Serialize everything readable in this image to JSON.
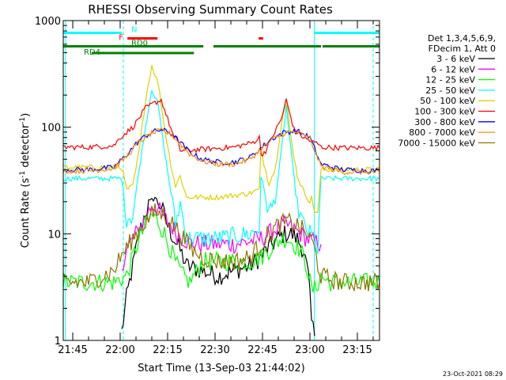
{
  "chart_data": {
    "type": "line",
    "title": "RHESSI Observing Summary Count Rates",
    "xlabel": "Start Time (13-Sep-03 21:44:02)",
    "ylabel_main": "Count Rate (s",
    "ylabel_sup1": "-1",
    "ylabel_mid": " detector",
    "ylabel_sup2": "-1",
    "ylabel_end": ")",
    "y_scale": "log",
    "ylim": [
      1,
      1000
    ],
    "xlim_minutes": [
      1302,
      1402
    ],
    "y_ticks": [
      {
        "value": 1,
        "label": "1"
      },
      {
        "value": 10,
        "label": "10"
      },
      {
        "value": 100,
        "label": "100"
      },
      {
        "value": 1000,
        "label": "1000"
      }
    ],
    "x_ticks": [
      {
        "value": 1305,
        "label": "21:45"
      },
      {
        "value": 1320,
        "label": "22:00"
      },
      {
        "value": 1335,
        "label": "22:15"
      },
      {
        "value": 1350,
        "label": "22:30"
      },
      {
        "value": 1365,
        "label": "22:45"
      },
      {
        "value": 1380,
        "label": "23:00"
      },
      {
        "value": 1395,
        "label": "23:15"
      }
    ],
    "legend_header": [
      "Det 1,3,4,5,6,9,",
      "FDecim 1, Att 0"
    ],
    "legend_placement": "right",
    "series": [
      {
        "name": "3 - 6 keV",
        "color": "#000000",
        "x": [
          1320.5,
          1322,
          1324,
          1326,
          1328,
          1329.5,
          1331,
          1333,
          1335,
          1337,
          1339,
          1341,
          1346,
          1351,
          1356,
          1361,
          1364.5,
          1366,
          1368,
          1370,
          1372,
          1374,
          1376,
          1378,
          1379.5,
          1380.5,
          1381.5
        ],
        "values": [
          1.2,
          2.5,
          5,
          10,
          16,
          20,
          22,
          18,
          12,
          9,
          7,
          5,
          4.5,
          4,
          4.5,
          5,
          6,
          7,
          8,
          9,
          10,
          10,
          9,
          7,
          4,
          1.5,
          1.1
        ]
      },
      {
        "name": "6 - 12 keV",
        "color": "#ff00ff",
        "x": [
          1320.5,
          1322,
          1324,
          1326,
          1328,
          1330,
          1332,
          1334,
          1336,
          1338,
          1340,
          1342,
          1346,
          1351,
          1356,
          1361,
          1364.5,
          1367,
          1369,
          1371,
          1373,
          1375,
          1377,
          1379,
          1381,
          1383.5
        ],
        "values": [
          5,
          7,
          9,
          11,
          14,
          19,
          17,
          14,
          12,
          10,
          9,
          8.2,
          8,
          8,
          8,
          8.5,
          9,
          10,
          11,
          12,
          12,
          11,
          10,
          9,
          8.5,
          8
        ]
      },
      {
        "name": "12 - 25 keV",
        "color": "#00ff00",
        "x": [
          1302,
          1310,
          1318,
          1322,
          1324,
          1326,
          1328,
          1330,
          1332,
          1334,
          1336,
          1338,
          1340,
          1342,
          1346,
          1351,
          1356,
          1361,
          1364.5,
          1367,
          1369,
          1371,
          1373,
          1375,
          1377,
          1379,
          1380.5,
          1381.5,
          1383.5,
          1386,
          1392,
          1402
        ],
        "values": [
          3.5,
          3.5,
          3.5,
          4,
          6,
          9,
          12,
          15,
          13,
          10,
          7,
          5,
          4,
          3.5,
          5.5,
          5.5,
          5.5,
          5.5,
          6,
          7,
          8,
          9,
          9,
          8,
          7,
          5,
          3,
          3,
          4,
          3.5,
          3.5,
          3.5
        ]
      },
      {
        "name": "25 - 50 keV",
        "color": "#00ffff",
        "x": [
          1302,
          1310,
          1318,
          1320.5,
          1322,
          1324,
          1326,
          1328,
          1330,
          1332,
          1334,
          1336,
          1337.5,
          1339,
          1341,
          1342,
          1346,
          1351,
          1356,
          1361,
          1364,
          1364.5,
          1367,
          1369,
          1371,
          1372.5,
          1374,
          1376,
          1378,
          1380,
          1381.5,
          1382.5,
          1383.5,
          1390,
          1402
        ],
        "values": [
          33,
          33,
          33,
          33,
          14,
          15,
          40,
          100,
          230,
          160,
          60,
          25,
          12,
          20,
          9,
          9,
          9,
          9,
          9.5,
          10,
          11,
          35,
          16,
          20,
          60,
          160,
          60,
          18,
          12,
          10,
          9,
          7,
          33,
          33,
          33
        ]
      },
      {
        "name": "50 - 100 keV",
        "color": "#e0d000",
        "x": [
          1302,
          1310,
          1318,
          1320.5,
          1322,
          1324,
          1326,
          1328,
          1330,
          1332,
          1334,
          1336,
          1337.5,
          1339,
          1341,
          1342,
          1346,
          1351,
          1356,
          1361,
          1364,
          1364.5,
          1367,
          1369,
          1371,
          1372.5,
          1374,
          1376,
          1378,
          1380,
          1381.5,
          1382.5,
          1383.5,
          1390,
          1402
        ],
        "values": [
          42,
          42,
          42,
          42,
          26,
          28,
          60,
          180,
          380,
          260,
          100,
          45,
          28,
          35,
          22,
          22,
          22,
          22,
          23,
          24,
          26,
          60,
          30,
          40,
          110,
          180,
          80,
          35,
          25,
          20,
          18,
          15,
          40,
          40,
          40
        ]
      },
      {
        "name": "100 - 300 keV",
        "color": "#ff0000",
        "x": [
          1302,
          1310,
          1318,
          1320,
          1324,
          1328,
          1331,
          1333,
          1335,
          1337,
          1338.5,
          1339,
          1346,
          1356,
          1362,
          1364,
          1364.6,
          1366,
          1368,
          1371,
          1372.5,
          1375,
          1378,
          1381,
          1382.5,
          1383.5,
          1390,
          1402
        ],
        "values": [
          65,
          65,
          67,
          80,
          100,
          150,
          170,
          180,
          120,
          80,
          72,
          60,
          62,
          65,
          72,
          80,
          55,
          60,
          80,
          120,
          180,
          95,
          80,
          72,
          70,
          65,
          64,
          64
        ]
      },
      {
        "name": "300 - 800 keV",
        "color": "#0000ff",
        "x": [
          1302,
          1310,
          1318,
          1322,
          1326,
          1330,
          1333,
          1336,
          1339,
          1342,
          1346,
          1351,
          1356,
          1361,
          1364,
          1368,
          1372,
          1376,
          1380,
          1383.5,
          1390,
          1402
        ],
        "values": [
          40,
          40,
          42,
          55,
          75,
          90,
          95,
          88,
          72,
          58,
          50,
          47,
          47,
          52,
          62,
          78,
          90,
          92,
          80,
          45,
          40,
          39
        ]
      },
      {
        "name": "800 - 7000 keV",
        "color": "#ff8c00",
        "x": [
          1302,
          1310,
          1318,
          1322,
          1326,
          1330,
          1333,
          1336,
          1339,
          1342,
          1346,
          1351,
          1356,
          1361,
          1364,
          1368,
          1372,
          1376,
          1380,
          1383.5,
          1390,
          1402
        ],
        "values": [
          39,
          39,
          41,
          53,
          73,
          88,
          93,
          86,
          70,
          56,
          48,
          45,
          45,
          50,
          60,
          76,
          88,
          90,
          78,
          43,
          38,
          38
        ]
      },
      {
        "name": "7000 - 15000 keV",
        "color": "#8b7500",
        "x": [
          1302,
          1310,
          1318,
          1320,
          1324,
          1328,
          1331,
          1334,
          1337,
          1340,
          1343,
          1346,
          1351,
          1356,
          1361,
          1364.5,
          1367,
          1370,
          1373,
          1376,
          1379,
          1381,
          1383.5,
          1390,
          1402
        ],
        "values": [
          3.5,
          3.5,
          4.5,
          6,
          9,
          13,
          16,
          15,
          12,
          9,
          7,
          6,
          5.5,
          5.5,
          6,
          8,
          10,
          12,
          13,
          12,
          10,
          8,
          4,
          3.5,
          3.5
        ]
      }
    ],
    "state_bars": [
      {
        "label": "N",
        "color": "#00ffff",
        "label_at": 1323.5,
        "segments": [
          [
            1302,
            1320.5
          ],
          [
            1381.5,
            1402
          ]
        ]
      },
      {
        "label": "F",
        "color": "#ff0000",
        "label_at": 1321,
        "segments": [
          [
            1322.3,
            1331.8
          ],
          [
            1363.8,
            1365.2
          ]
        ]
      },
      {
        "label": "RD0",
        "color": "#008000",
        "label_at": 1323.5,
        "segments": [
          [
            1302,
            1346.3
          ],
          [
            1349.5,
            1364.5
          ],
          [
            1364.5,
            1383.5
          ],
          [
            1384,
            1402
          ]
        ]
      },
      {
        "label": "RD4",
        "color": "#008000",
        "label_at": 1308.5,
        "segments": [
          [
            1311,
            1343.3
          ]
        ]
      }
    ],
    "vlines": [
      {
        "x": 1302.7,
        "color": "#00ffff",
        "style": "solid"
      },
      {
        "x": 1321,
        "color": "#00ffff",
        "style": "dashed"
      },
      {
        "x": 1381.4,
        "color": "#00ffff",
        "style": "solid"
      },
      {
        "x": 1400,
        "color": "#00ffff",
        "style": "dashed"
      }
    ],
    "footer_date": "23-Oct-2021 08:29"
  }
}
